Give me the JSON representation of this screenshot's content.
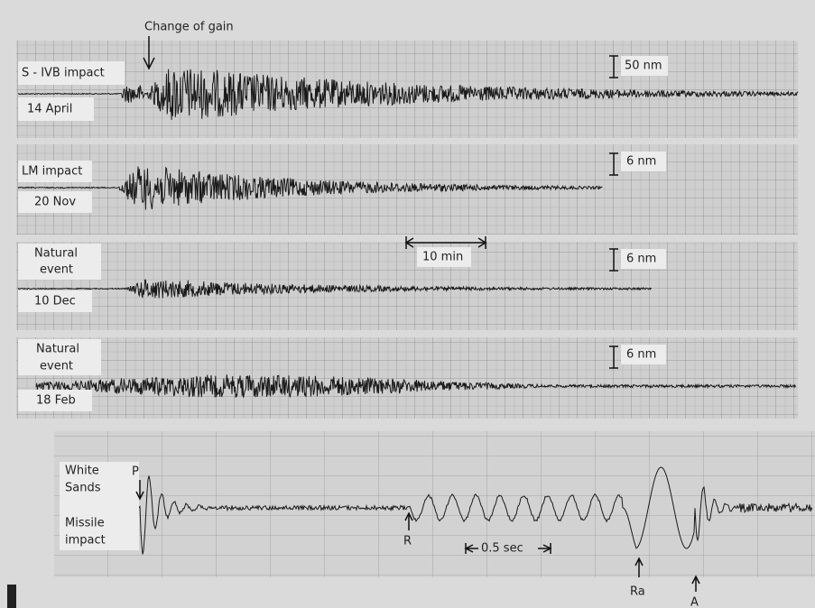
{
  "annotations": {
    "change_of_gain": "Change of gain",
    "ten_min": "10 min",
    "half_sec": "0.5 sec"
  },
  "panels": [
    {
      "label": [
        "S - IVB impact"
      ],
      "date": "14 April",
      "scale": "50 nm"
    },
    {
      "label": [
        "LM impact"
      ],
      "date": "20 Nov",
      "scale": "6 nm"
    },
    {
      "label": [
        "Natural",
        "event"
      ],
      "date": "10 Dec",
      "scale": "6 nm"
    },
    {
      "label": [
        "Natural",
        "event"
      ],
      "date": "18 Feb",
      "scale": "6 nm"
    }
  ],
  "missile": {
    "label": [
      "White",
      "Sands",
      "Missile",
      "impact"
    ],
    "phases": {
      "p": "P",
      "r": "R",
      "ra": "Ra",
      "a": "A"
    }
  }
}
